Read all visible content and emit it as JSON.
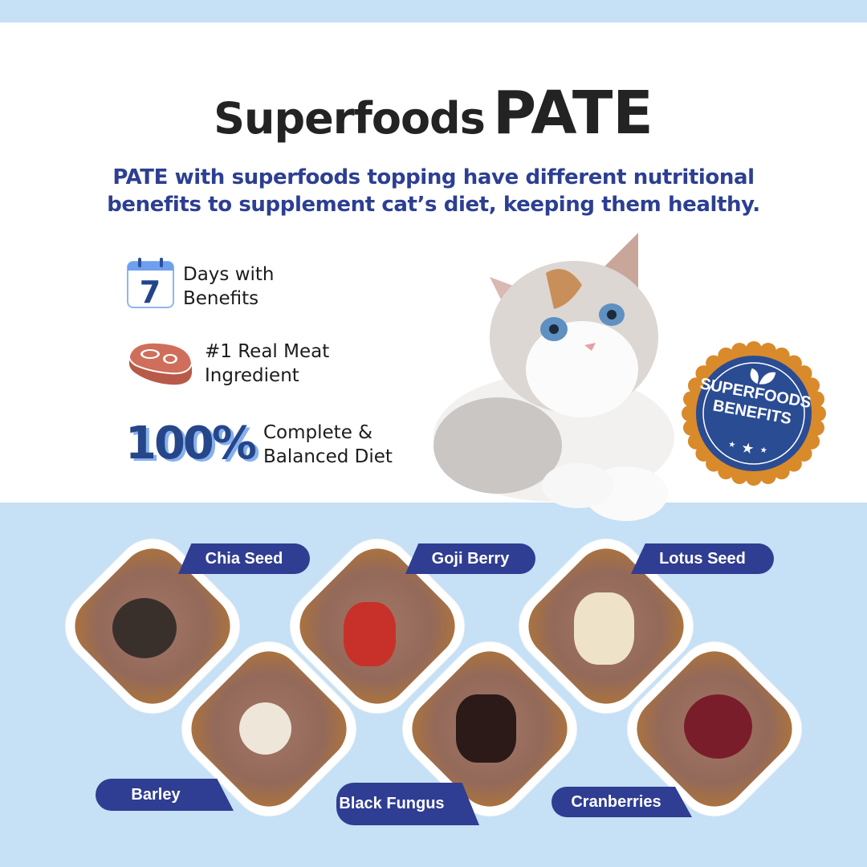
{
  "header": {
    "title_part1": "Superfoods",
    "title_part2": "PATE",
    "subtitle_line1": "PATE with superfoods topping have different nutritional",
    "subtitle_line2": "benefits to supplement cat’s diet, keeping them healthy."
  },
  "features": [
    {
      "icon": "calendar-icon",
      "icon_text": "7",
      "line1": "Days with",
      "line2": "Benefits"
    },
    {
      "icon": "steak-icon",
      "line1": "#1 Real Meat",
      "line2": "Ingredient"
    },
    {
      "icon_text": "100%",
      "line1": "Complete &",
      "line2": "Balanced Diet"
    }
  ],
  "badge": {
    "line1": "SUPERFOODS",
    "line2": "BENEFITS",
    "icon": "leaf-icon"
  },
  "toppings": [
    {
      "label": "Chia Seed",
      "color": "#3a302b"
    },
    {
      "label": "Barley",
      "color": "#efe6da"
    },
    {
      "label": "Goji Berry",
      "color": "#c8312a"
    },
    {
      "label": "Black Fungus",
      "color": "#2b1a17"
    },
    {
      "label": "Lotus Seed",
      "color": "#eee3c8"
    },
    {
      "label": "Cranberries",
      "color": "#7a1d2a"
    }
  ],
  "colors": {
    "brand_blue": "#2f3d92",
    "background_blue": "#c6e0f5",
    "badge_orange": "#d98a2b"
  }
}
